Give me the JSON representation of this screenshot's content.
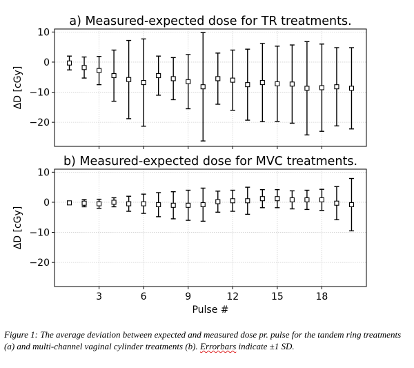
{
  "chart_data": [
    {
      "type": "scatter",
      "title": "a) Measured-expected dose for TR treatments.",
      "ylabel": "ΔD [cGy]",
      "xlabel": "",
      "xlim": [
        0,
        21
      ],
      "ylim": [
        -28,
        11
      ],
      "yticks": [
        10,
        0,
        -10,
        -20
      ],
      "ytick_labels": [
        "10",
        "0",
        "−10",
        "−20"
      ],
      "xticks": [
        3,
        6,
        9,
        12,
        15,
        18
      ],
      "xtick_labels": [],
      "grid": true,
      "marker": "open-square",
      "x": [
        1,
        2,
        3,
        4,
        5,
        6,
        7,
        8,
        9,
        10,
        11,
        12,
        13,
        14,
        15,
        16,
        17,
        18,
        19,
        20
      ],
      "y": [
        -0.3,
        -1.8,
        -2.8,
        -4.5,
        -5.8,
        -6.8,
        -4.5,
        -5.5,
        -6.5,
        -8.2,
        -5.5,
        -6,
        -7.5,
        -6.8,
        -7.2,
        -7.3,
        -8.7,
        -8.5,
        -8.2,
        -8.7
      ],
      "yerr": [
        2.3,
        3.5,
        4.7,
        8.5,
        13,
        14.5,
        6.5,
        7,
        9,
        18,
        8.5,
        10,
        11.8,
        13,
        12.5,
        13,
        15.5,
        14.5,
        13,
        13.5
      ]
    },
    {
      "type": "scatter",
      "title": "b) Measured-expected dose for MVC treatments.",
      "ylabel": "ΔD [cGy]",
      "xlabel": "Pulse #",
      "xlim": [
        0,
        21
      ],
      "ylim": [
        -28,
        11
      ],
      "yticks": [
        10,
        0,
        -10,
        -20
      ],
      "ytick_labels": [
        "10",
        "0",
        "−10",
        "−20"
      ],
      "xticks": [
        3,
        6,
        9,
        12,
        15,
        18
      ],
      "xtick_labels": [
        "3",
        "6",
        "9",
        "12",
        "15",
        "18"
      ],
      "grid": true,
      "marker": "open-square",
      "x": [
        1,
        2,
        3,
        4,
        5,
        6,
        7,
        8,
        9,
        10,
        11,
        12,
        13,
        14,
        15,
        16,
        17,
        18,
        19,
        20
      ],
      "y": [
        -0.2,
        -0.3,
        -0.5,
        0,
        -0.5,
        -0.5,
        -0.8,
        -1,
        -1,
        -0.8,
        0.2,
        0.5,
        0.5,
        1.2,
        1.2,
        0.8,
        0.8,
        0.8,
        -0.3,
        -0.8
      ],
      "yerr": [
        0.5,
        1.2,
        1.5,
        1.5,
        2.5,
        3.2,
        4,
        4.5,
        5,
        5.5,
        3.5,
        3.5,
        4.5,
        3,
        3,
        3,
        3.2,
        3.5,
        5.5,
        8.7
      ]
    }
  ],
  "caption": {
    "before_underline": "Figure 1: The average deviation between expected and measured dose pr. pulse for the tandem ring treatments (a) and multi-channel vaginal cylinder treatments (b). ",
    "underlined": "Errorbars",
    "after_underline": " indicate ±1 SD."
  }
}
